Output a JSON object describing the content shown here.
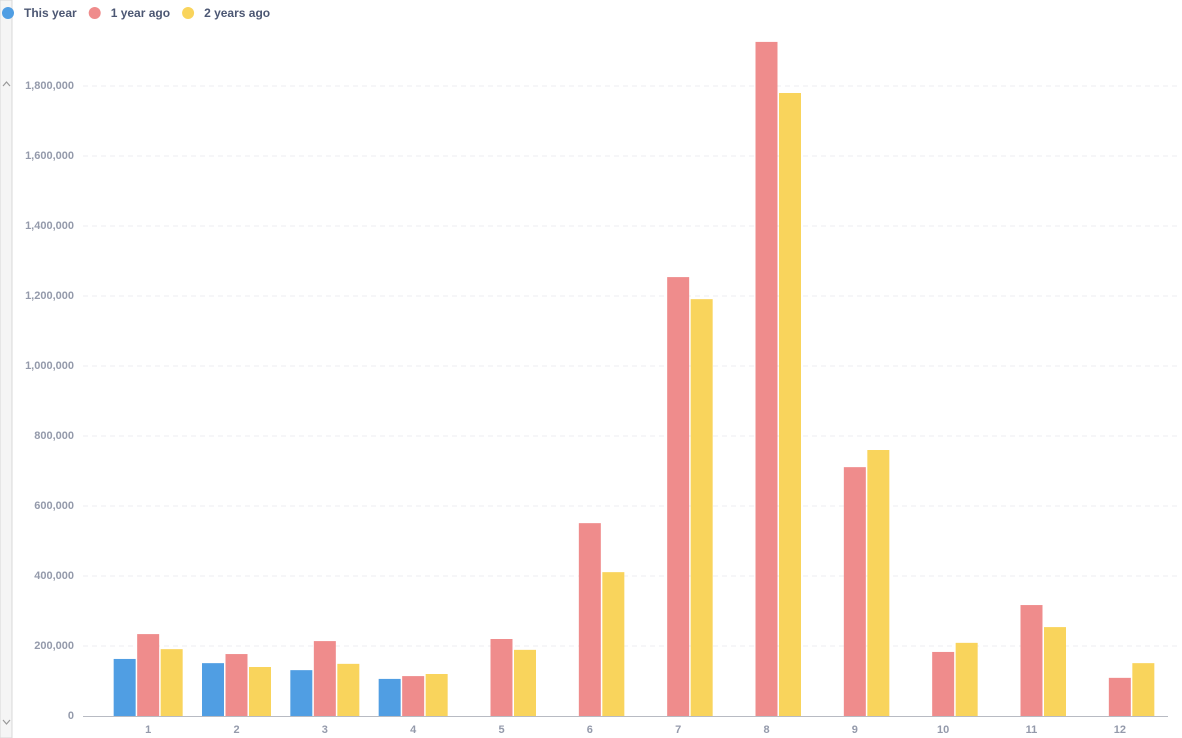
{
  "chart_data": {
    "type": "bar",
    "categories": [
      "1",
      "2",
      "3",
      "4",
      "5",
      "6",
      "7",
      "8",
      "9",
      "10",
      "11",
      "12"
    ],
    "series": [
      {
        "name": "This year",
        "color": "#509ee3",
        "values": [
          163000,
          151000,
          131000,
          106000,
          null,
          null,
          null,
          null,
          null,
          null,
          null,
          null
        ]
      },
      {
        "name": "1 year ago",
        "color": "#ef8c8c",
        "values": [
          234000,
          177000,
          214000,
          114000,
          220000,
          551000,
          1254000,
          1926000,
          711000,
          183000,
          317000,
          109000
        ]
      },
      {
        "name": "2 years ago",
        "color": "#f9d45c",
        "values": [
          191000,
          140000,
          149000,
          120000,
          189000,
          411000,
          1191000,
          1780000,
          760000,
          209000,
          254000,
          151000
        ]
      }
    ],
    "ylim": [
      0,
      1930000
    ],
    "yticks": [
      0,
      {
        "value": 200000,
        "label": "200,000"
      },
      {
        "value": 400000,
        "label": "400,000"
      },
      {
        "value": 600000,
        "label": "600,000"
      },
      {
        "value": 800000,
        "label": "800,000"
      },
      {
        "value": 1000000,
        "label": "1,000,000"
      },
      {
        "value": 1200000,
        "label": "1,200,000"
      },
      {
        "value": 1400000,
        "label": "1,400,000"
      },
      {
        "value": 1600000,
        "label": "1,600,000"
      },
      {
        "value": 1800000,
        "label": "1,800,000"
      }
    ],
    "grid": true,
    "legend": "top-left"
  }
}
